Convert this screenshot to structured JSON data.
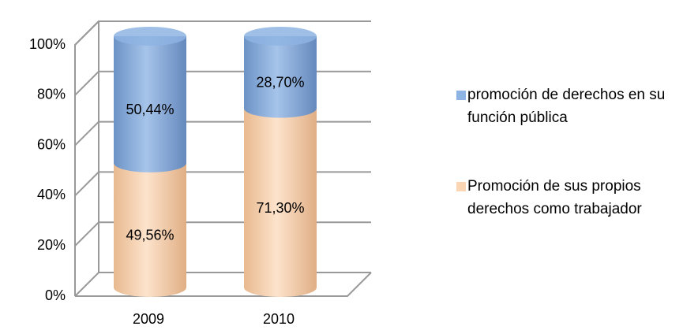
{
  "chart_data": {
    "type": "bar",
    "stacked": true,
    "categories": [
      "2009",
      "2010"
    ],
    "series": [
      {
        "name": "Promoción de sus propios derechos como trabajador",
        "color": "#fcd5b4",
        "values": [
          49.56,
          71.3
        ],
        "value_labels": [
          "49,56%",
          "71,30%"
        ]
      },
      {
        "name": "promoción de derechos en su función pública",
        "color": "#8eb4e3",
        "values": [
          50.44,
          28.7
        ],
        "value_labels": [
          "50,44%",
          "28,70%"
        ]
      }
    ],
    "ylim": [
      0,
      100
    ],
    "yticks": [
      {
        "value": 0,
        "label": "0%"
      },
      {
        "value": 20,
        "label": "20%"
      },
      {
        "value": 40,
        "label": "40%"
      },
      {
        "value": 60,
        "label": "60%"
      },
      {
        "value": 80,
        "label": "80%"
      },
      {
        "value": 100,
        "label": "100%"
      }
    ],
    "grid": true,
    "legend": "right"
  }
}
